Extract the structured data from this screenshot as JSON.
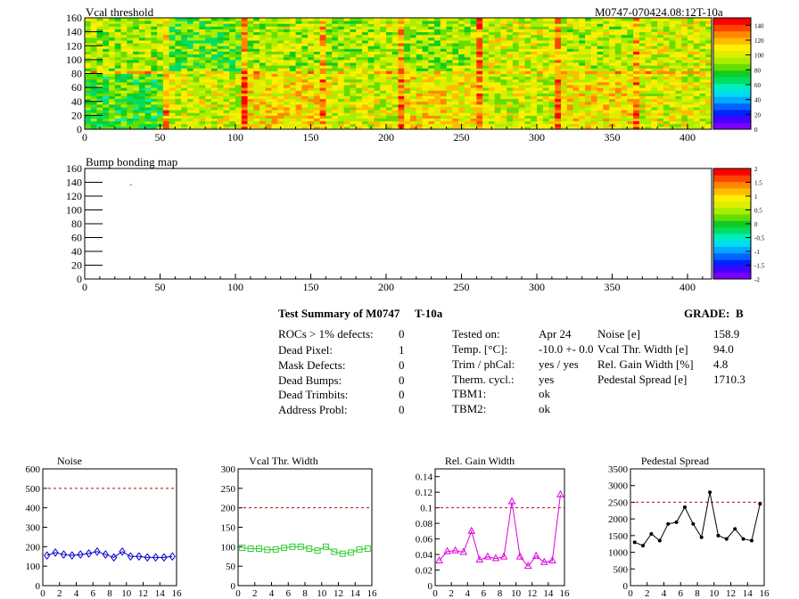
{
  "header": {
    "title_left": "Vcal threshold",
    "title_right": "M0747-070424.08:12T-10a"
  },
  "bump_map": {
    "title": "Bump bonding map"
  },
  "summary": {
    "title": "Test Summary of M0747",
    "test_type": "T-10a",
    "grade_label": "GRADE:",
    "grade_value": "B",
    "defects": [
      {
        "label": "ROCs > 1% defects:",
        "value": "0"
      },
      {
        "label": "Dead Pixel:",
        "value": "1"
      },
      {
        "label": "Mask Defects:",
        "value": "0"
      },
      {
        "label": "Dead Bumps:",
        "value": "0"
      },
      {
        "label": "Dead Trimbits:",
        "value": "0"
      },
      {
        "label": "Address Probl:",
        "value": "0"
      }
    ],
    "conditions": [
      {
        "label": "Tested on:",
        "value": "Apr 24"
      },
      {
        "label": "Temp. [°C]:",
        "value": "-10.0 +- 0.0"
      },
      {
        "label": "Trim / phCal:",
        "value": "yes / yes"
      },
      {
        "label": "Therm. cycl.:",
        "value": "yes"
      },
      {
        "label": "TBM1:",
        "value": "ok"
      },
      {
        "label": "TBM2:",
        "value": "ok"
      }
    ],
    "results": [
      {
        "label": "Noise [e]",
        "value": "158.9"
      },
      {
        "label": "Vcal Thr. Width [e]",
        "value": "94.0"
      },
      {
        "label": "Rel. Gain Width [%]",
        "value": "4.8"
      },
      {
        "label": "Pedestal Spread [e]",
        "value": "1710.3"
      }
    ]
  },
  "colors": {
    "noise": "#0000cc",
    "vcal": "#33cc33",
    "gain": "#dd00dd",
    "pedestal": "#000000",
    "limit": "#cc0000"
  },
  "chart_data": [
    {
      "type": "heatmap",
      "id": "vcal",
      "x_ticks": [
        0,
        50,
        100,
        150,
        200,
        250,
        300,
        350,
        400
      ],
      "y_ticks": [
        0,
        20,
        40,
        60,
        80,
        100,
        120,
        140,
        160
      ],
      "xlim": [
        0,
        416
      ],
      "ylim": [
        0,
        160
      ],
      "z_ticks": [
        0,
        20,
        40,
        60,
        80,
        100,
        120,
        140
      ],
      "zlim": [
        0,
        150
      ],
      "roc_means_bottom": [
        80,
        100,
        112,
        100,
        108,
        100,
        110,
        103
      ],
      "roc_means_top": [
        95,
        82,
        95,
        95,
        92,
        100,
        95,
        100
      ]
    },
    {
      "type": "heatmap",
      "id": "bump",
      "x_ticks": [
        0,
        50,
        100,
        150,
        200,
        250,
        300,
        350,
        400
      ],
      "y_ticks": [
        0,
        20,
        40,
        60,
        80,
        100,
        120,
        140,
        160
      ],
      "xlim": [
        0,
        416
      ],
      "ylim": [
        0,
        160
      ],
      "z_ticks": [
        "-2",
        "-1.5",
        "-1",
        "-0.5",
        "0",
        "0.5",
        "1",
        "1.5",
        "2"
      ],
      "zlim": [
        -2,
        2
      ],
      "points": [
        {
          "x": 30,
          "y": 136
        }
      ]
    },
    {
      "type": "line",
      "id": "noise",
      "title": "Noise",
      "x_ticks": [
        0,
        2,
        4,
        6,
        8,
        10,
        12,
        14,
        16
      ],
      "xlim": [
        0,
        16
      ],
      "y_ticks": [
        0,
        100,
        200,
        300,
        400,
        500,
        600
      ],
      "ylim": [
        0,
        600
      ],
      "limit": 500,
      "marker": "diamond",
      "x": [
        0.5,
        1.5,
        2.5,
        3.5,
        4.5,
        5.5,
        6.5,
        7.5,
        8.5,
        9.5,
        10.5,
        11.5,
        12.5,
        13.5,
        14.5,
        15.5
      ],
      "values": [
        155,
        170,
        160,
        155,
        160,
        165,
        175,
        160,
        145,
        175,
        150,
        150,
        145,
        145,
        145,
        150
      ]
    },
    {
      "type": "line",
      "id": "vcal_width",
      "title": "Vcal Thr. Width",
      "x_ticks": [
        0,
        2,
        4,
        6,
        8,
        10,
        12,
        14,
        16
      ],
      "xlim": [
        0,
        16
      ],
      "y_ticks": [
        0,
        50,
        100,
        150,
        200,
        250,
        300
      ],
      "ylim": [
        0,
        300
      ],
      "limit": 200,
      "marker": "square",
      "x": [
        0.5,
        1.5,
        2.5,
        3.5,
        4.5,
        5.5,
        6.5,
        7.5,
        8.5,
        9.5,
        10.5,
        11.5,
        12.5,
        13.5,
        14.5,
        15.5
      ],
      "values": [
        97,
        95,
        95,
        92,
        93,
        97,
        100,
        100,
        95,
        90,
        100,
        87,
        82,
        85,
        93,
        95
      ]
    },
    {
      "type": "line",
      "id": "gain_width",
      "title": "Rel. Gain Width",
      "x_ticks": [
        0,
        2,
        4,
        6,
        8,
        10,
        12,
        14,
        16
      ],
      "xlim": [
        0,
        16
      ],
      "y_ticks": [
        "0",
        "0.02",
        "0.04",
        "0.06",
        "0.08",
        "0.1",
        "0.12",
        "0.14"
      ],
      "ylim": [
        0,
        0.15
      ],
      "limit": 0.1,
      "marker": "triangle",
      "x": [
        0.5,
        1.5,
        2.5,
        3.5,
        4.5,
        5.5,
        6.5,
        7.5,
        8.5,
        9.5,
        10.5,
        11.5,
        12.5,
        13.5,
        14.5,
        15.5
      ],
      "values": [
        0.032,
        0.044,
        0.045,
        0.043,
        0.07,
        0.033,
        0.037,
        0.035,
        0.037,
        0.108,
        0.037,
        0.025,
        0.038,
        0.03,
        0.032,
        0.117
      ]
    },
    {
      "type": "line",
      "id": "pedestal",
      "title": "Pedestal Spread",
      "x_ticks": [
        0,
        2,
        4,
        6,
        8,
        10,
        12,
        14,
        16
      ],
      "xlim": [
        0,
        16
      ],
      "y_ticks": [
        0,
        500,
        1000,
        1500,
        2000,
        2500,
        3000,
        3500
      ],
      "ylim": [
        0,
        3500
      ],
      "limit": 2500,
      "marker": "dot",
      "x": [
        0.5,
        1.5,
        2.5,
        3.5,
        4.5,
        5.5,
        6.5,
        7.5,
        8.5,
        9.5,
        10.5,
        11.5,
        12.5,
        13.5,
        14.5,
        15.5
      ],
      "values": [
        1300,
        1200,
        1550,
        1350,
        1850,
        1900,
        2350,
        1850,
        1450,
        2800,
        1500,
        1400,
        1700,
        1400,
        1350,
        2450
      ]
    }
  ]
}
